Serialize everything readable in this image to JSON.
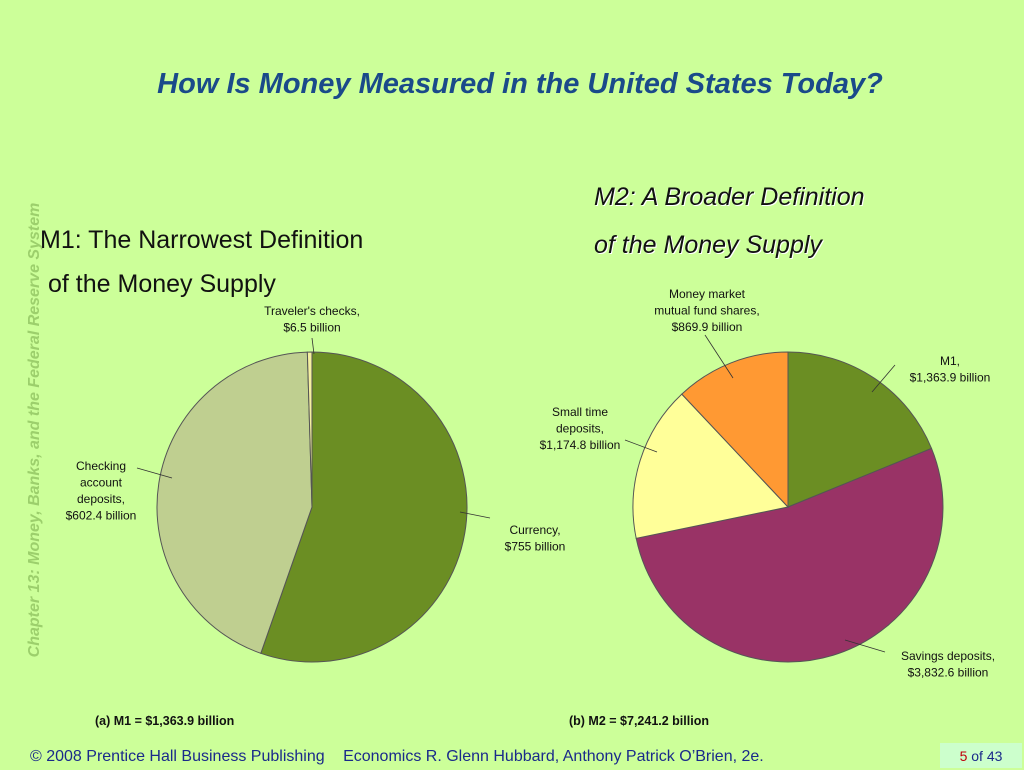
{
  "title": "How Is Money Measured in the United States Today?",
  "side_text": "Chapter 13:  Money, Banks, and the Federal Reserve System",
  "m1_heading": {
    "line1": "M1:  The Narrowest Definition",
    "line2": "of the Money Supply"
  },
  "m2_heading": {
    "line1": "M2: A Broader Definition",
    "line2": "of the Money Supply"
  },
  "footer": {
    "copyright": "© 2008 Prentice Hall Business Publishing",
    "book": "Economics  R. Glenn Hubbard, Anthony Patrick O’Brien, 2e.",
    "page_current": "5",
    "page_sep": " of ",
    "page_total": "43"
  },
  "colors": {
    "background": "#ccff99",
    "title": "#1a4a8a",
    "footer": "#1a2a8a"
  },
  "chart_data": [
    {
      "type": "pie",
      "caption": "(a)  M1 = $1,363.9 billion",
      "slices": [
        {
          "name": "Currency",
          "value": 755,
          "color": "#6b8e23",
          "label_lines": [
            "Currency,",
            "$755 billion"
          ]
        },
        {
          "name": "Checking account deposits",
          "value": 602.4,
          "color": "#bfcf90",
          "label_lines": [
            "Checking",
            "account",
            "deposits,",
            "$602.4 billion"
          ]
        },
        {
          "name": "Traveler's checks",
          "value": 6.5,
          "color": "#f5f0a0",
          "label_lines": [
            "Traveler's checks,",
            "$6.5 billion"
          ]
        }
      ]
    },
    {
      "type": "pie",
      "caption": "(b)  M2 = $7,241.2 billion",
      "slices": [
        {
          "name": "M1",
          "value": 1363.9,
          "color": "#6b8e23",
          "label_lines": [
            "M1,",
            "$1,363.9 billion"
          ]
        },
        {
          "name": "Savings deposits",
          "value": 3832.6,
          "color": "#993366",
          "label_lines": [
            "Savings deposits,",
            "$3,832.6 billion"
          ]
        },
        {
          "name": "Small time deposits",
          "value": 1174.8,
          "color": "#ffff99",
          "label_lines": [
            "Small time",
            "deposits,",
            "$1,174.8 billion"
          ]
        },
        {
          "name": "Money market mutual fund shares",
          "value": 869.9,
          "color": "#ff9933",
          "label_lines": [
            "Money market",
            "mutual fund shares,",
            "$869.9 billion"
          ]
        }
      ]
    }
  ]
}
